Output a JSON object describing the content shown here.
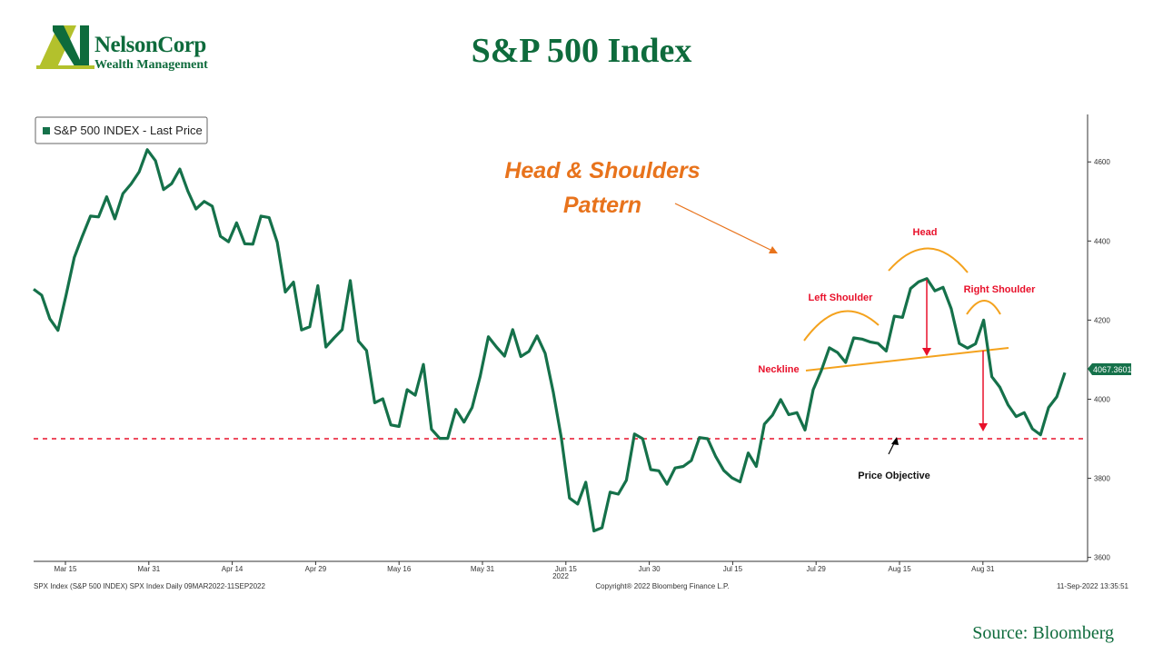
{
  "header": {
    "logo_name": "NelsonCorp",
    "logo_sub": "Wealth Management",
    "title": "S&P 500 Index"
  },
  "source": "Source: Bloomberg",
  "colors": {
    "brand_green": "#0e6b3c",
    "series": "#15714a",
    "logo_lime": "#b3c12c",
    "annotation_red": "#e8102a",
    "annotation_orange": "#f4a21d",
    "pattern_title": "#e8731c"
  },
  "chart_data": {
    "type": "line",
    "legend": "S&P 500 INDEX - Last Price",
    "legend_position": "top-left",
    "y_ticks": [
      3600,
      3800,
      4000,
      4200,
      4400,
      4600
    ],
    "ylim": [
      3590,
      4720
    ],
    "x_tick_labels": [
      "Mar 15",
      "Mar 31",
      "Apr 14",
      "Apr 29",
      "May 16",
      "May 31",
      "Jun 15",
      "Jun 30",
      "Jul 15",
      "Jul 29",
      "Aug 15",
      "Aug 31"
    ],
    "x_year_label": "2022",
    "last_price_label": "4067.3601",
    "series": [
      {
        "values": [
          4278,
          4263,
          4203,
          4174,
          4263,
          4358,
          4412,
          4463,
          4461,
          4512,
          4456,
          4520,
          4544,
          4575,
          4631,
          4603,
          4530,
          4545,
          4582,
          4526,
          4481,
          4500,
          4488,
          4412,
          4398,
          4446,
          4393,
          4392,
          4463,
          4459,
          4397,
          4271,
          4296,
          4175,
          4183,
          4287,
          4132,
          4155,
          4176,
          4300,
          4147,
          4123,
          3991,
          4001,
          3935,
          3931,
          4024,
          4010,
          4088,
          3924,
          3901,
          3901,
          3974,
          3942,
          3979,
          4058,
          4158,
          4132,
          4109,
          4176,
          4108,
          4121,
          4160,
          4116,
          4017,
          3901,
          3750,
          3735,
          3790,
          3667,
          3675,
          3765,
          3760,
          3795,
          3912,
          3900,
          3822,
          3819,
          3785,
          3826,
          3830,
          3845,
          3903,
          3900,
          3855,
          3820,
          3801,
          3791,
          3864,
          3830,
          3937,
          3960,
          3999,
          3961,
          3966,
          3922,
          4024,
          4072,
          4130,
          4118,
          4093,
          4155,
          4152,
          4145,
          4141,
          4122,
          4210,
          4207,
          4280,
          4297,
          4305,
          4274,
          4283,
          4229,
          4141,
          4129,
          4140,
          4200,
          4057,
          4030,
          3986,
          3956,
          3966,
          3925,
          3910,
          3979,
          4006,
          4067
        ]
      }
    ],
    "annotations": {
      "pattern_title": [
        "Head & Shoulders",
        "Pattern"
      ],
      "head": "Head",
      "left_shoulder": "Left Shoulder",
      "right_shoulder": "Right Shoulder",
      "neckline": "Neckline",
      "price_objective": "Price Objective",
      "price_objective_level": 3900
    },
    "footer": {
      "left": "SPX Index (S&P 500 INDEX) SPX Index  Daily 09MAR2022-11SEP2022",
      "center": "Copyright® 2022 Bloomberg Finance L.P.",
      "right": "11-Sep-2022 13:35:51"
    }
  }
}
